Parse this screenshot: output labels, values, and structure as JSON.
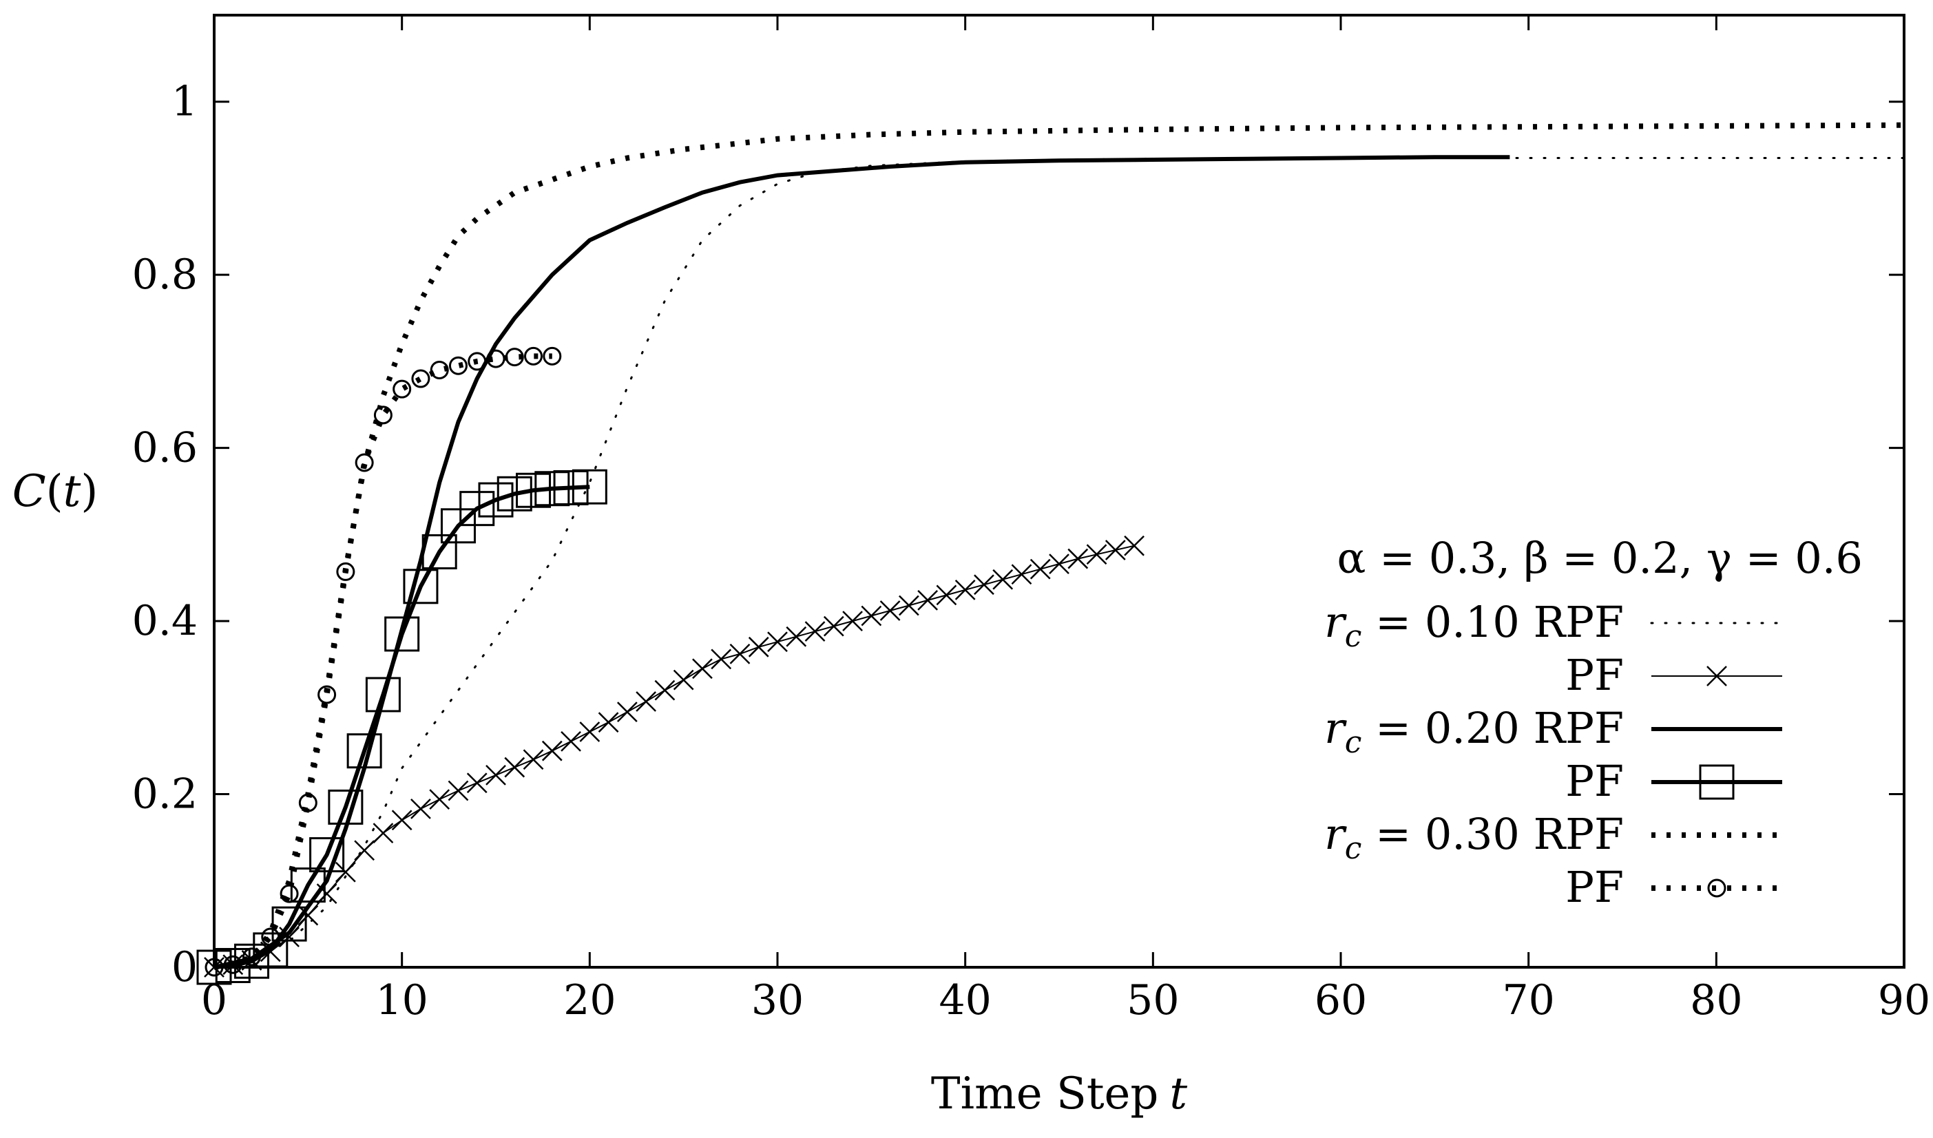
{
  "chart_data": {
    "type": "line",
    "title": "",
    "xlabel": "Time Step",
    "xlabel_var": "t",
    "ylabel": "C(t)",
    "xlim": [
      0,
      90
    ],
    "ylim": [
      0,
      1.1
    ],
    "xticks": [
      0,
      10,
      20,
      30,
      40,
      50,
      60,
      70,
      80,
      90
    ],
    "xtick_labels": [
      "0",
      "10",
      "20",
      "30",
      "40",
      "50",
      "60",
      "70",
      "80",
      "90"
    ],
    "yticks": [
      0,
      0.2,
      0.4,
      0.6,
      0.8,
      1
    ],
    "ytick_labels": [
      "0",
      "0.2",
      "0.4",
      "0.6",
      "0.8",
      "1"
    ],
    "grid": false,
    "legend_position": "right",
    "legend_title": "α = 0.3, β = 0.2, γ = 0.6",
    "series": [
      {
        "name": "r_c = 0.10 RPF",
        "legend_prefix": "r",
        "legend_sub": "c",
        "legend_rest": " = 0.10 RPF",
        "style": "sparse-dot",
        "marker": "none",
        "x": [
          0,
          2,
          4,
          6,
          8,
          9,
          10,
          12,
          14,
          16,
          18,
          20,
          22,
          24,
          26,
          28,
          30,
          32,
          35,
          40,
          45,
          50,
          60,
          70,
          80,
          90
        ],
        "y": [
          0,
          0.01,
          0.03,
          0.07,
          0.14,
          0.18,
          0.23,
          0.29,
          0.35,
          0.41,
          0.47,
          0.56,
          0.67,
          0.77,
          0.84,
          0.88,
          0.905,
          0.918,
          0.926,
          0.931,
          0.933,
          0.934,
          0.935,
          0.935,
          0.935,
          0.935
        ]
      },
      {
        "name": "PF (r_c = 0.10)",
        "legend_label": "PF",
        "style": "thin",
        "marker": "x",
        "x": [
          0,
          1,
          2,
          3,
          4,
          5,
          6,
          7,
          8,
          9,
          10,
          11,
          12,
          13,
          14,
          15,
          16,
          17,
          18,
          19,
          20,
          21,
          22,
          23,
          24,
          25,
          26,
          27,
          28,
          29,
          30,
          31,
          32,
          33,
          34,
          35,
          36,
          37,
          38,
          39,
          40,
          41,
          42,
          43,
          44,
          45,
          46,
          47,
          48,
          49
        ],
        "y": [
          0,
          0.003,
          0.008,
          0.018,
          0.035,
          0.06,
          0.085,
          0.11,
          0.135,
          0.155,
          0.17,
          0.183,
          0.194,
          0.204,
          0.213,
          0.222,
          0.231,
          0.24,
          0.25,
          0.261,
          0.272,
          0.283,
          0.295,
          0.307,
          0.32,
          0.332,
          0.345,
          0.356,
          0.362,
          0.37,
          0.376,
          0.382,
          0.388,
          0.394,
          0.4,
          0.406,
          0.412,
          0.418,
          0.424,
          0.43,
          0.436,
          0.442,
          0.448,
          0.454,
          0.46,
          0.466,
          0.472,
          0.477,
          0.482,
          0.487
        ]
      },
      {
        "name": "r_c = 0.20 RPF",
        "legend_prefix": "r",
        "legend_sub": "c",
        "legend_rest": " = 0.20 RPF",
        "style": "solid",
        "marker": "none",
        "x": [
          0,
          2,
          4,
          6,
          7,
          8,
          9,
          10,
          11,
          12,
          13,
          14,
          15,
          16,
          17,
          18,
          19,
          20,
          22,
          24,
          26,
          28,
          30,
          33,
          36,
          40,
          45,
          50,
          55,
          60,
          65,
          69
        ],
        "y": [
          0,
          0.01,
          0.04,
          0.1,
          0.16,
          0.23,
          0.31,
          0.39,
          0.47,
          0.56,
          0.63,
          0.68,
          0.72,
          0.75,
          0.775,
          0.8,
          0.82,
          0.84,
          0.86,
          0.878,
          0.895,
          0.907,
          0.915,
          0.92,
          0.925,
          0.93,
          0.932,
          0.933,
          0.934,
          0.935,
          0.936,
          0.936
        ]
      },
      {
        "name": "PF (r_c = 0.20)",
        "legend_label": "PF",
        "style": "solid",
        "marker": "square",
        "x": [
          0,
          1,
          2,
          3,
          4,
          5,
          6,
          7,
          8,
          9,
          10,
          11,
          12,
          13,
          14,
          15,
          16,
          17,
          18,
          19,
          20
        ],
        "y": [
          0,
          0.002,
          0.007,
          0.02,
          0.05,
          0.095,
          0.13,
          0.185,
          0.25,
          0.315,
          0.385,
          0.44,
          0.48,
          0.51,
          0.53,
          0.54,
          0.547,
          0.551,
          0.553,
          0.554,
          0.555
        ]
      },
      {
        "name": "r_c = 0.30 RPF",
        "legend_prefix": "r",
        "legend_sub": "c",
        "legend_rest": " = 0.30 RPF",
        "style": "dotted-heavy",
        "marker": "none",
        "x": [
          0,
          2,
          3,
          4,
          5,
          6,
          7,
          8,
          9,
          10,
          11,
          12,
          13,
          14,
          15,
          16,
          18,
          20,
          22,
          25,
          28,
          30,
          35,
          40,
          50,
          60,
          70,
          80,
          90
        ],
        "y": [
          0,
          0.01,
          0.04,
          0.1,
          0.2,
          0.32,
          0.46,
          0.58,
          0.66,
          0.72,
          0.77,
          0.81,
          0.845,
          0.865,
          0.88,
          0.895,
          0.91,
          0.925,
          0.935,
          0.945,
          0.952,
          0.957,
          0.962,
          0.965,
          0.968,
          0.97,
          0.971,
          0.972,
          0.973
        ]
      },
      {
        "name": "PF (r_c = 0.30)",
        "legend_label": "PF",
        "style": "dotted-heavy",
        "marker": "circle",
        "x": [
          0,
          1,
          2,
          3,
          4,
          5,
          6,
          7,
          8,
          9,
          10,
          11,
          12,
          13,
          14,
          15,
          16,
          17,
          18
        ],
        "y": [
          0,
          0.003,
          0.012,
          0.035,
          0.085,
          0.19,
          0.315,
          0.457,
          0.583,
          0.638,
          0.668,
          0.68,
          0.69,
          0.695,
          0.7,
          0.703,
          0.705,
          0.706,
          0.706
        ]
      }
    ]
  }
}
